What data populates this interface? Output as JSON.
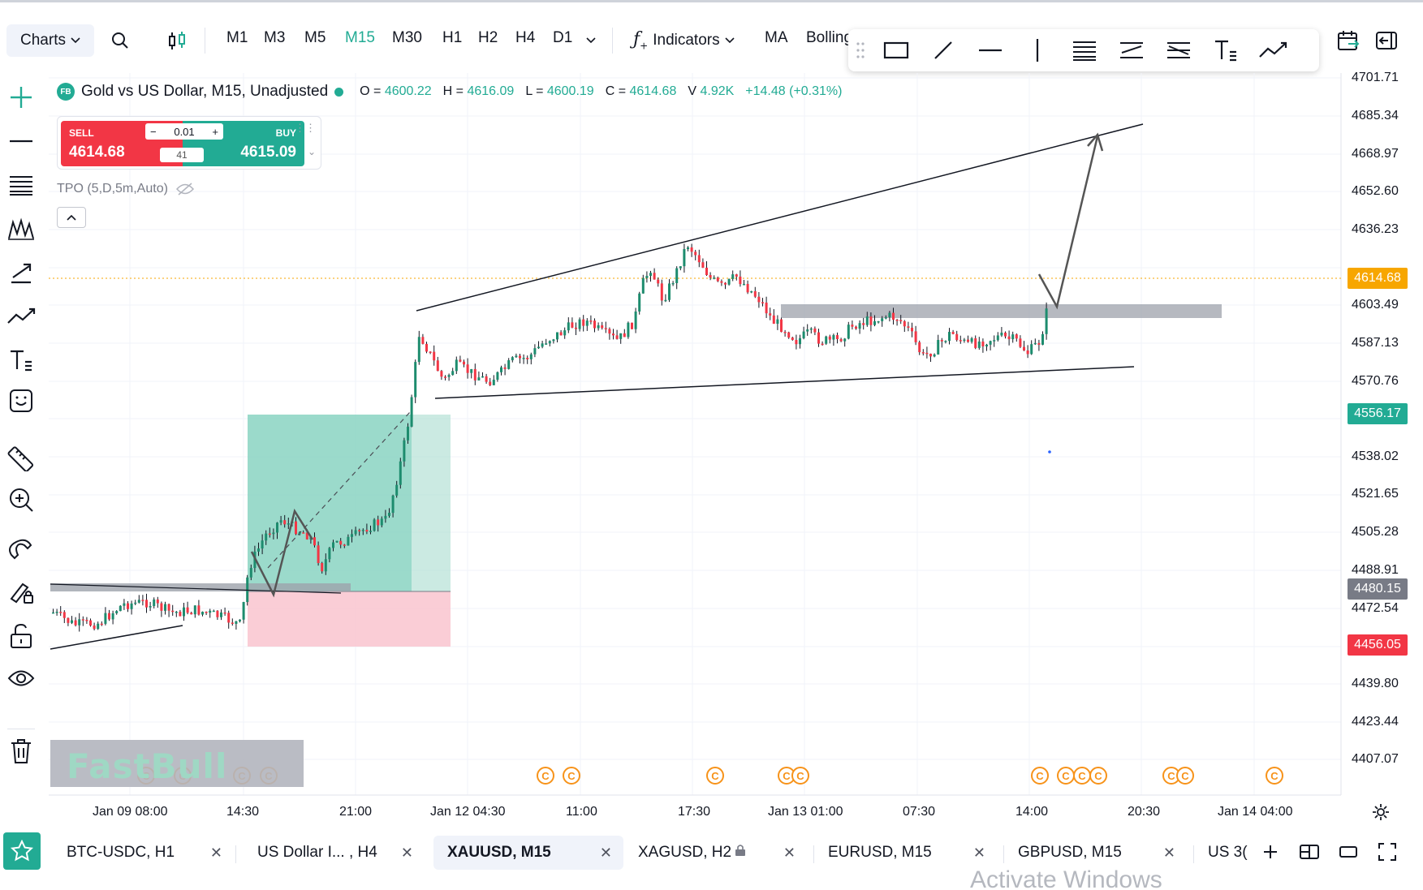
{
  "toolbar": {
    "charts_label": "Charts",
    "timeframes": [
      "M1",
      "M3",
      "M5",
      "M15",
      "M30",
      "H1",
      "H2",
      "H4",
      "D1"
    ],
    "active_timeframe": "M15",
    "indicators_label": "Indicators",
    "ma_label": "MA",
    "bolling_label": "Bolling"
  },
  "symbol": {
    "badge": "FB",
    "title": "Gold vs US Dollar, M15, Unadjusted",
    "o_label": "O =",
    "o_value": "4600.22",
    "h_label": "H =",
    "h_value": "4616.09",
    "l_label": "L =",
    "l_value": "4600.19",
    "c_label": "C =",
    "c_value": "4614.68",
    "v_label": "V",
    "v_value": "4.92K",
    "change": "+14.48 (+0.31%)"
  },
  "trade": {
    "sell_label": "SELL",
    "sell_price": "4614.68",
    "buy_label": "BUY",
    "buy_price": "4615.09",
    "qty": "0.01",
    "spread": "41"
  },
  "tpo_label": "TPO (5,D,5m,Auto)",
  "price_axis": [
    "4701.71",
    "4685.34",
    "4668.97",
    "4652.60",
    "4636.23",
    "4603.49",
    "4587.13",
    "4570.76",
    "4538.02",
    "4521.65",
    "4505.28",
    "4488.91",
    "4472.54",
    "4439.80",
    "4423.44",
    "4407.07"
  ],
  "price_tags": {
    "current": "4614.68",
    "tp": "4556.17",
    "entry": "4480.15",
    "sl": "4456.05"
  },
  "time_axis": [
    "Jan 09 08:00",
    "14:30",
    "21:00",
    "Jan 12 04:30",
    "11:00",
    "17:30",
    "Jan 13 01:00",
    "07:30",
    "14:00",
    "20:30",
    "Jan 14 04:00"
  ],
  "logo_text": "FastBull",
  "tabs": [
    {
      "label": "BTC-USDC, H1",
      "active": false
    },
    {
      "label": "US Dollar I... , H4",
      "active": false
    },
    {
      "label": "XAUUSD, M15",
      "active": true
    },
    {
      "label": "XAGUSD, H2",
      "active": false
    },
    {
      "label": "EURUSD, M15",
      "active": false
    },
    {
      "label": "GBPUSD, M15",
      "active": false
    },
    {
      "label": "US 3(",
      "active": false
    }
  ],
  "watermark": "Activate Windows",
  "colors": {
    "up": "#22ab94",
    "down": "#f23645",
    "accent": "#22ab94",
    "current_price": "#f7a600",
    "entry_tag": "#787b86"
  }
}
